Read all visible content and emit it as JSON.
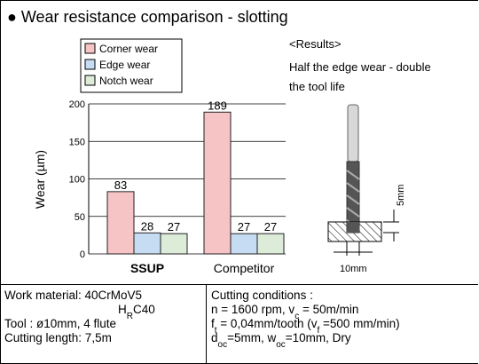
{
  "chart_data": {
    "type": "bar",
    "title": "● Wear resistance comparison - slotting",
    "y_label": "Wear (µm)",
    "categories": [
      "SSUP",
      "Competitor"
    ],
    "series": [
      {
        "name": "Corner wear",
        "color": "#f7c4c6",
        "values": [
          83,
          189
        ]
      },
      {
        "name": "Edge wear",
        "color": "#c6dcf2",
        "values": [
          28,
          27
        ]
      },
      {
        "name": "Notch wear",
        "color": "#dcecd9",
        "values": [
          27,
          27
        ]
      }
    ],
    "ylim": [
      0,
      200
    ],
    "yticks": [
      0,
      50,
      100,
      150,
      200
    ],
    "grid": true,
    "legend": "top-left",
    "results": {
      "heading": "<Results>",
      "lines": [
        "Half the edge wear - double",
        "the tool life"
      ]
    },
    "tool_dimensions": [
      "5mm",
      "10mm"
    ]
  },
  "conditions": {
    "left": [
      [
        "Work material:  40CrMoV5"
      ],
      [
        "H",
        "R",
        "C40"
      ],
      [
        "Tool :  ø10mm, 4 flute"
      ],
      [
        "Cutting length:  7,5m"
      ]
    ],
    "right": [
      [
        "Cutting conditions :"
      ],
      [
        "n = 1600 rpm,   v",
        "c",
        " = 50m/min"
      ],
      [
        "f",
        "t",
        " = 0,04mm/tooth (v",
        "f",
        " =500 mm/min)"
      ],
      [
        "d",
        "oc",
        "=5mm,  w",
        "oc",
        "=10mm,  Dry"
      ]
    ]
  }
}
